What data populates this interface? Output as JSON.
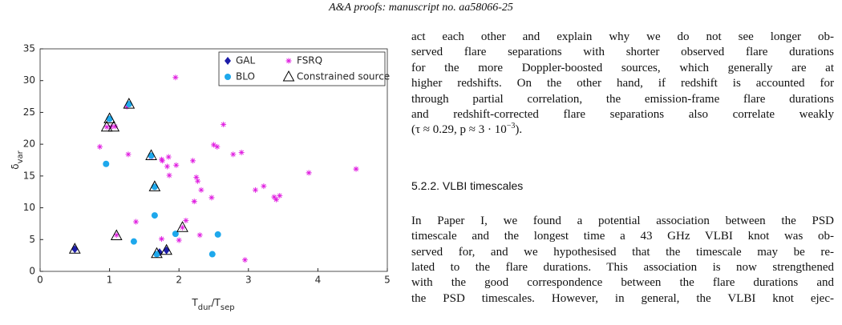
{
  "header": "A&A proofs: manuscript no. aa58066-25",
  "chart_data": {
    "type": "scatter",
    "xlabel": [
      "T",
      "dur",
      "/T",
      "sep"
    ],
    "ylabel": [
      "δ",
      "var"
    ],
    "xlim": [
      0,
      5
    ],
    "ylim": [
      0,
      35
    ],
    "xticks": [
      0,
      1,
      2,
      3,
      4,
      5
    ],
    "yticks": [
      0,
      5,
      10,
      15,
      20,
      25,
      30,
      35
    ],
    "grid": false,
    "legend": "upper right",
    "series": [
      {
        "name": "GAL",
        "color": "#1c1ca8",
        "marker": "diamond",
        "x": [
          0.5,
          1.72,
          1.82
        ],
        "values": [
          3.5,
          3.0,
          3.3
        ]
      },
      {
        "name": "FSRQ",
        "color": "#e01ee0",
        "marker": "asterisk",
        "x": [
          0.86,
          0.96,
          1.02,
          1.08,
          1.25,
          1.27,
          1.1,
          1.38,
          1.6,
          1.75,
          1.76,
          1.85,
          1.83,
          1.86,
          1.95,
          1.96,
          1.75,
          2.0,
          2.05,
          2.1,
          2.2,
          2.22,
          2.25,
          2.27,
          2.3,
          2.32,
          2.47,
          2.5,
          2.55,
          2.64,
          2.78,
          2.9,
          2.95,
          3.1,
          3.22,
          3.37,
          3.4,
          3.45,
          3.87,
          4.55
        ],
        "values": [
          19.6,
          22.7,
          22.7,
          22.8,
          25.9,
          18.4,
          5.7,
          7.8,
          18.0,
          17.6,
          17.4,
          18.0,
          16.5,
          15.1,
          30.5,
          16.7,
          5.1,
          4.9,
          6.9,
          8.0,
          17.4,
          11.0,
          14.8,
          14.2,
          5.7,
          12.8,
          11.6,
          19.9,
          19.6,
          23.1,
          18.4,
          18.7,
          1.8,
          12.8,
          13.4,
          11.7,
          11.3,
          11.9,
          15.5,
          16.1
        ]
      },
      {
        "name": "BLO",
        "color": "#1ea8ec",
        "marker": "circle",
        "x": [
          0.95,
          1.0,
          1.28,
          1.6,
          1.65,
          1.65,
          1.35,
          1.68,
          1.95,
          2.48,
          2.56
        ],
        "values": [
          16.9,
          24.0,
          26.3,
          18.2,
          13.3,
          8.8,
          4.7,
          2.7,
          5.9,
          2.7,
          5.8
        ]
      },
      {
        "name": "Constrained source",
        "color": "#000000",
        "marker": "triangle",
        "x": [
          0.5,
          1.0,
          0.96,
          1.06,
          1.28,
          1.1,
          1.6,
          1.65,
          1.68,
          1.82,
          2.05
        ],
        "values": [
          3.5,
          24.0,
          22.7,
          22.7,
          26.3,
          5.6,
          18.2,
          13.3,
          2.8,
          3.3,
          6.9
        ]
      }
    ]
  },
  "body": {
    "paragraph1": [
      "act each other and explain why we do not see longer ob-",
      "served flare separations with shorter observed flare durations",
      "for the more Doppler-boosted sources, which generally are at",
      "higher redshifts. On the other hand, if redshift is accounted for",
      "through partial correlation, the emission-frame flare durations",
      "and redshift-corrected flare separations also correlate weakly"
    ],
    "paragraph1_end": [
      "(τ ≈ 0.29, p ≈ 3 · 10",
      "−3",
      ")."
    ],
    "heading": "5.2.2. VLBI timescales",
    "paragraph2": [
      "In Paper I, we found a potential association between the PSD",
      "timescale and the longest time a 43 GHz VLBI knot was ob-",
      "served for, and we hypothesised that the timescale may be re-",
      "lated to the flare durations. This association is now strengthened",
      "with the good correspondence between the flare durations and",
      "the PSD timescales. However, in general, the VLBI knot ejec-"
    ]
  }
}
